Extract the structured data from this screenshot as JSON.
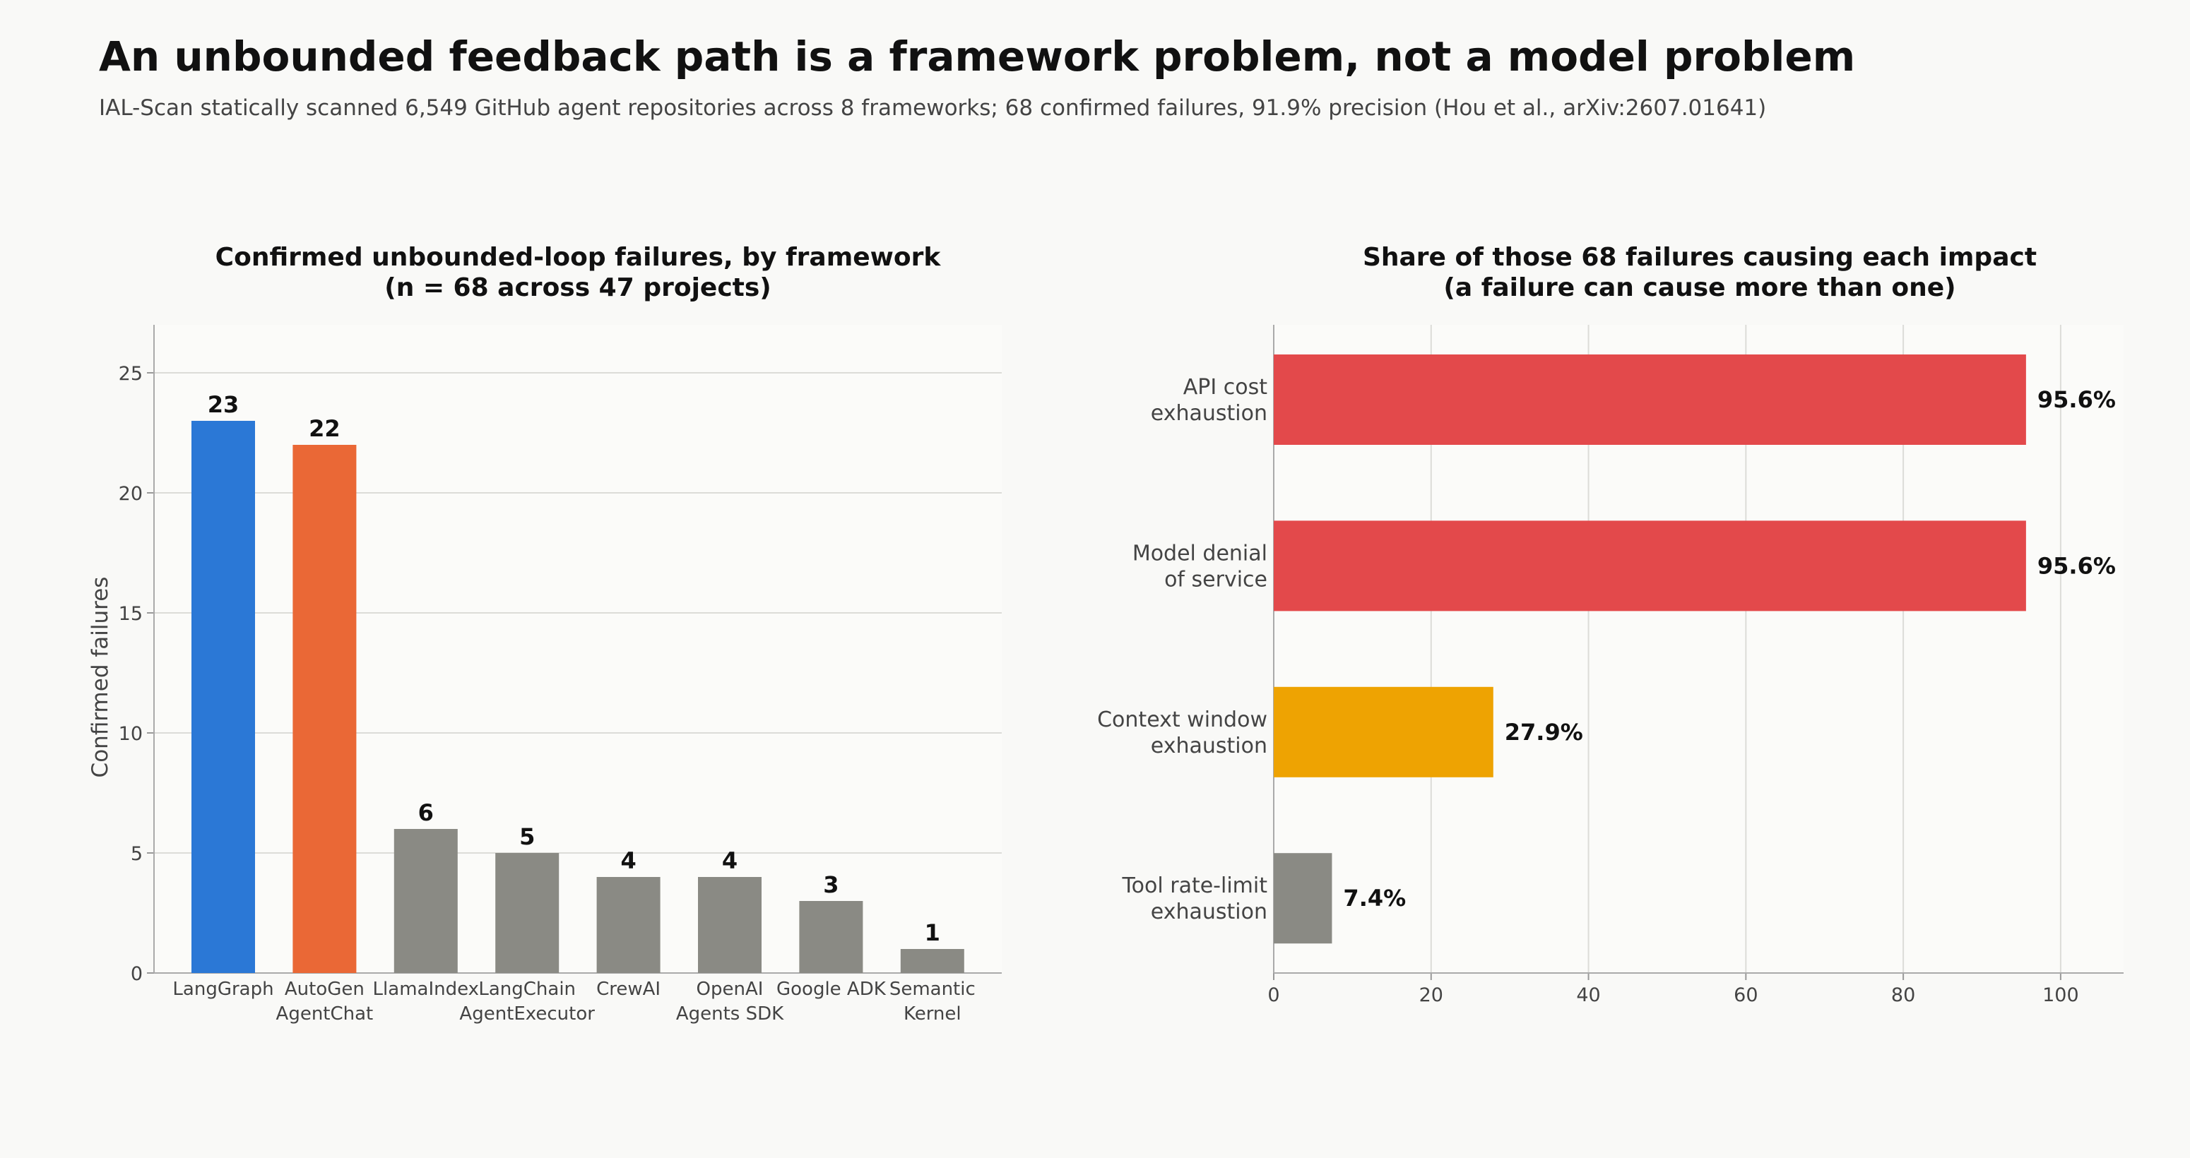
{
  "title": "An unbounded feedback path is a framework problem, not a model problem",
  "subtitle": "IAL-Scan statically scanned 6,549 GitHub agent repositories across 8 frameworks; 68 confirmed failures, 91.9% precision (Hou et al., arXiv:2607.01641)",
  "chart_data": [
    {
      "type": "bar",
      "title_lines": [
        "Confirmed unbounded-loop failures, by framework",
        "(n = 68 across 47 projects)"
      ],
      "categories": [
        "LangGraph",
        "AutoGen\nAgentChat",
        "LlamaIndex",
        "LangChain\nAgentExecutor",
        "CrewAI",
        "OpenAI\nAgents SDK",
        "Google ADK",
        "Semantic\nKernel"
      ],
      "values": [
        23,
        22,
        6,
        5,
        4,
        4,
        3,
        1
      ],
      "colors": [
        "#2b78d6",
        "#ea6836",
        "#8a8a84",
        "#8a8a84",
        "#8a8a84",
        "#8a8a84",
        "#8a8a84",
        "#8a8a84"
      ],
      "xlabel": "",
      "ylabel": "Confirmed failures",
      "ylim": [
        0,
        27
      ],
      "yticks": [
        0,
        5,
        10,
        15,
        20,
        25
      ],
      "grid": "horizontal"
    },
    {
      "type": "bar",
      "orientation": "horizontal",
      "title_lines": [
        "Share of those 68 failures causing each impact",
        "(a failure can cause more than one)"
      ],
      "categories": [
        "API cost\nexhaustion",
        "Model denial\nof service",
        "Context window\nexhaustion",
        "Tool rate-limit\nexhaustion"
      ],
      "values": [
        95.6,
        95.6,
        27.9,
        7.4
      ],
      "value_labels": [
        "95.6%",
        "95.6%",
        "27.9%",
        "7.4%"
      ],
      "colors": [
        "#e3494b",
        "#e3494b",
        "#eea302",
        "#8a8a84"
      ],
      "xlim": [
        0,
        108
      ],
      "xticks": [
        0,
        20,
        40,
        60,
        80,
        100
      ],
      "grid": "vertical"
    }
  ]
}
